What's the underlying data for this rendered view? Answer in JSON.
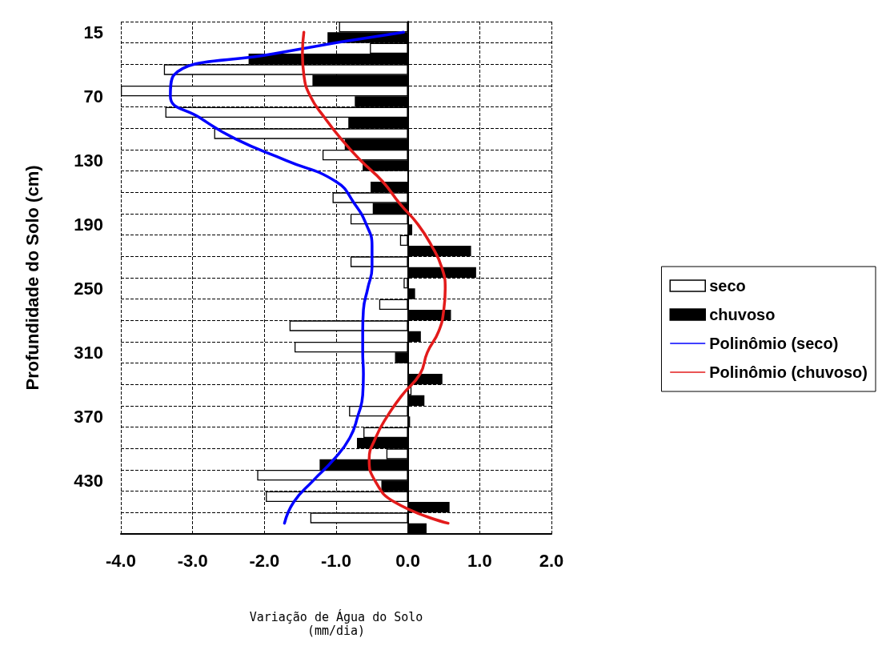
{
  "chart_data": {
    "type": "bar",
    "orientation": "horizontal",
    "xlabel": "Variação de Água do Solo (mm/dia)",
    "ylabel": "Profundidade do Solo (cm)",
    "categories": [
      "15",
      null,
      null,
      "70",
      null,
      null,
      "130",
      null,
      null,
      "190",
      null,
      null,
      "250",
      null,
      null,
      "310",
      null,
      null,
      "370",
      null,
      null,
      "430",
      null,
      null
    ],
    "series": [
      {
        "name": "seco",
        "color": "#ffffff",
        "values": [
          -0.96,
          -0.53,
          -3.4,
          -4.0,
          -3.38,
          -2.7,
          -1.19,
          null,
          -1.05,
          -0.8,
          -0.11,
          -0.8,
          -0.06,
          -0.4,
          -1.65,
          -1.58,
          null,
          0.05,
          -0.82,
          -0.62,
          -0.3,
          -2.1,
          -1.98,
          -1.36
        ]
      },
      {
        "name": "chuvoso",
        "color": "#000000",
        "values": [
          -1.12,
          -2.22,
          -1.33,
          -0.74,
          -0.83,
          -0.88,
          -0.63,
          -0.52,
          -0.49,
          0.06,
          0.88,
          0.95,
          0.1,
          0.6,
          0.18,
          -0.18,
          0.48,
          0.23,
          0.03,
          -0.71,
          -1.23,
          -0.37,
          0.58,
          0.26
        ]
      },
      {
        "name": "Polinômio (seco)",
        "type": "line",
        "color": "#0000ff",
        "values": [
          -0.06,
          -1.86,
          -3.26,
          -3.31,
          -2.9,
          -2.4,
          -1.7,
          -1.0,
          -0.75,
          -0.58,
          -0.5,
          -0.5,
          -0.56,
          -0.62,
          -0.63,
          -0.63,
          -0.62,
          -0.63,
          -0.7,
          -0.81,
          -1.03,
          -1.32,
          -1.59,
          -1.72
        ]
      },
      {
        "name": "Polinômio (chuvoso)",
        "type": "line",
        "color": "#e31b1b",
        "values": [
          -1.45,
          -1.47,
          -1.45,
          -1.36,
          -1.16,
          -0.93,
          -0.66,
          -0.35,
          -0.12,
          0.14,
          0.33,
          0.47,
          0.52,
          0.5,
          0.43,
          0.27,
          0.17,
          -0.08,
          -0.29,
          -0.45,
          -0.54,
          -0.46,
          -0.19,
          0.56
        ]
      }
    ],
    "xlim": [
      -4,
      2
    ],
    "xticks": [
      {
        "value": -4,
        "label": "-4.0"
      },
      {
        "value": -3,
        "label": "-3.0"
      },
      {
        "value": -2,
        "label": "-2.0"
      },
      {
        "value": -1,
        "label": "-1.0"
      },
      {
        "value": 0,
        "label": "0.0"
      },
      {
        "value": 1,
        "label": "1.0"
      },
      {
        "value": 2,
        "label": "2.0"
      }
    ],
    "grid": true,
    "legend": "right",
    "marker": "none",
    "line_style": "solid"
  }
}
